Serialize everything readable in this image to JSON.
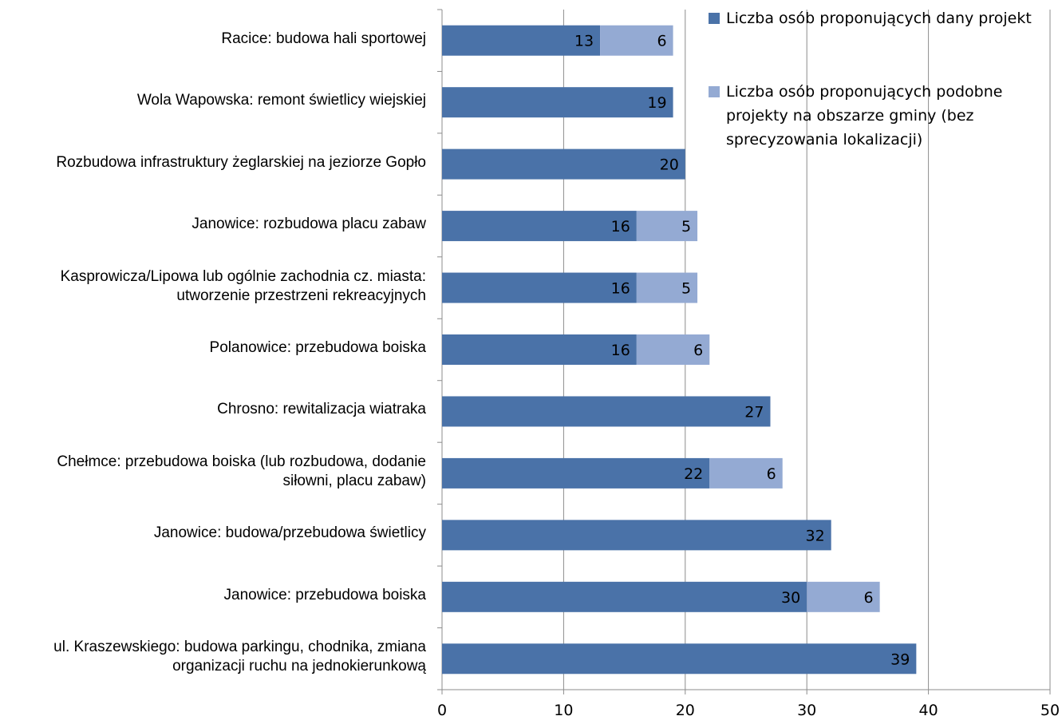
{
  "chart_data": {
    "type": "bar",
    "orientation": "horizontal",
    "stacked": true,
    "categories": [
      "Racice: budowa hali sportowej",
      "Wola Wapowska: remont świetlicy wiejskiej",
      "Rozbudowa infrastruktury żeglarskiej na jeziorze Gopło",
      "Janowice: rozbudowa placu zabaw",
      "Kasprowicza/Lipowa lub ogólnie zachodnia cz. miasta:\nutworzenie przestrzeni rekreacyjnych",
      "Polanowice: przebudowa boiska",
      "Chrosno: rewitalizacja wiatraka",
      "Chełmce: przebudowa boiska (lub rozbudowa, dodanie\nsiłowni, placu zabaw)",
      "Janowice: budowa/przebudowa świetlicy",
      "Janowice: przebudowa boiska",
      "ul. Kraszewskiego: budowa parkingu, chodnika, zmiana\norganizacji ruchu na jednokierunkową"
    ],
    "series": [
      {
        "name": "Liczba osób proponujących dany projekt",
        "color": "#4a72a8",
        "values": [
          13,
          19,
          20,
          16,
          16,
          16,
          27,
          22,
          32,
          30,
          39
        ]
      },
      {
        "name": "Liczba osób proponujących podobne projekty na obszarze gminy (bez sprecyzowania lokalizacji)",
        "color": "#94aad3",
        "values": [
          6,
          null,
          null,
          5,
          5,
          6,
          null,
          6,
          null,
          6,
          null
        ]
      }
    ],
    "xlim": [
      0,
      50
    ],
    "xticks": [
      0,
      10,
      20,
      30,
      40,
      50
    ],
    "grid": true,
    "legend_position": "top-right",
    "title": "",
    "xlabel": "",
    "ylabel": ""
  }
}
